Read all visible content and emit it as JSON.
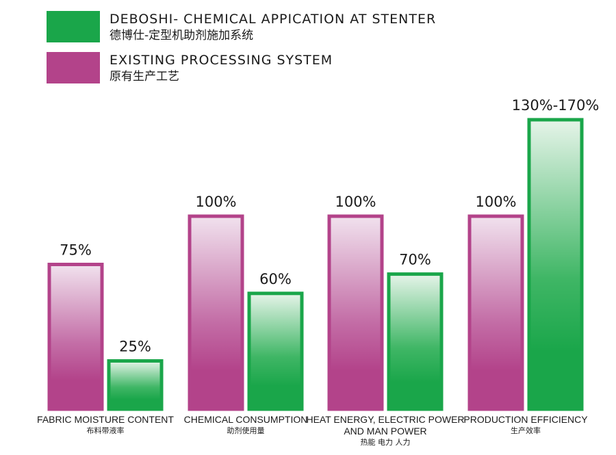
{
  "legend": [
    {
      "label_en": "DEBOSHI- CHEMICAL APPICATION AT STENTER",
      "label_cn": "德博仕-定型机助剂施加系统",
      "color": "#1aa64a"
    },
    {
      "label_en": "EXISTING PROCESSING SYSTEM",
      "label_cn": "原有生产工艺",
      "color": "#b3438a"
    }
  ],
  "colors": {
    "existing": "#b3438a",
    "deboshi": "#1aa64a"
  },
  "chart_data": {
    "type": "bar",
    "categories": [
      {
        "label": [
          "FABRIC MOISTURE CONTENT"
        ],
        "label_cn": "布料带液率"
      },
      {
        "label": [
          "CHEMICAL CONSUMPTION"
        ],
        "label_cn": "助剂使用量"
      },
      {
        "label": [
          "HEAT ENERGY, ELECTRIC POWER",
          "AND MAN POWER"
        ],
        "label_cn": "热能 电力 人力"
      },
      {
        "label": [
          "PRODUCTION EFFICIENCY"
        ],
        "label_cn": "生产效率"
      }
    ],
    "series": [
      {
        "name": "EXISTING PROCESSING SYSTEM",
        "values": [
          75,
          100,
          100,
          100
        ],
        "labels": [
          "75%",
          "100%",
          "100%",
          "100%"
        ]
      },
      {
        "name": "DEBOSHI- CHEMICAL APPICATION AT STENTER",
        "values": [
          25,
          60,
          70,
          150
        ],
        "labels": [
          "25%",
          "60%",
          "70%",
          "130%-170%"
        ]
      }
    ],
    "ylim": [
      0,
      150
    ]
  }
}
